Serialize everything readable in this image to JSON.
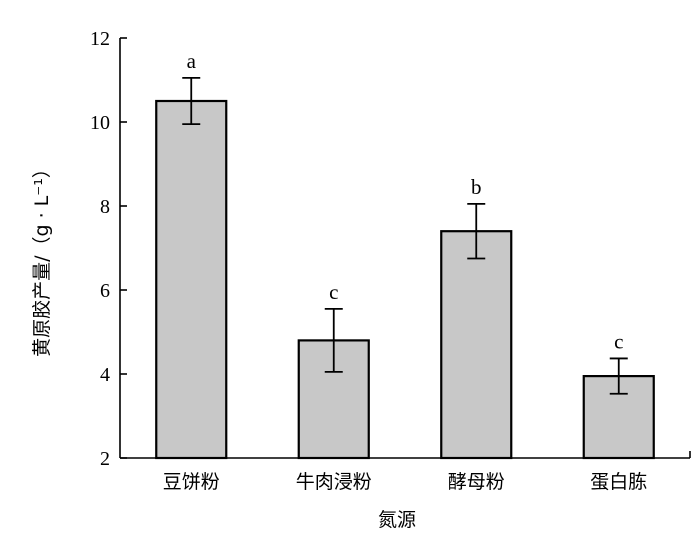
{
  "chart_data": {
    "type": "bar",
    "categories": [
      "豆饼粉",
      "牛肉浸粉",
      "酵母粉",
      "蛋白胨"
    ],
    "values": [
      10.5,
      4.8,
      7.4,
      3.95
    ],
    "errors": [
      0.55,
      0.75,
      0.65,
      0.42
    ],
    "significance": [
      "a",
      "c",
      "b",
      "c"
    ],
    "xlabel": "氮源",
    "ylabel": "黄原胶产量/（g · L⁻¹）",
    "ylim": [
      2,
      12
    ],
    "yticks": [
      2,
      4,
      6,
      8,
      10,
      12
    ],
    "grid": false,
    "colors": {
      "bar_fill": "#c8c8c8",
      "bar_stroke": "#000000"
    }
  }
}
